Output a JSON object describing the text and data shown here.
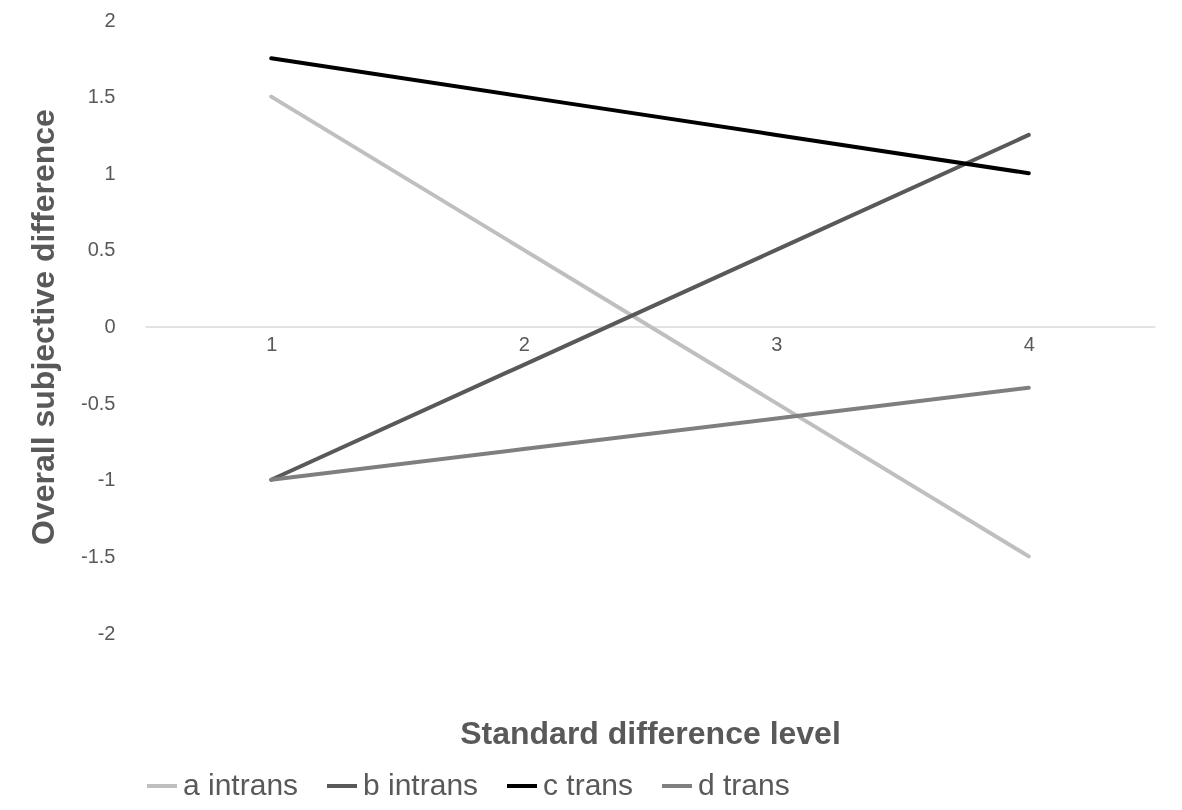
{
  "chart_data": {
    "type": "line",
    "xlabel": "Standard difference level",
    "ylabel": "Overall subjective difference",
    "categories": [
      "1",
      "2",
      "3",
      "4"
    ],
    "series": [
      {
        "name": "a intrans",
        "color": "#bfbfbf",
        "values": [
          1.5,
          0.5,
          -0.5,
          -1.5
        ]
      },
      {
        "name": "b intrans",
        "color": "#595959",
        "values": [
          -1,
          -0.25,
          0.5,
          1.25
        ]
      },
      {
        "name": "c trans",
        "color": "#000000",
        "values": [
          1.75,
          1.5,
          1.25,
          1
        ]
      },
      {
        "name": "d trans",
        "color": "#7f7f7f",
        "values": [
          -1,
          -0.8,
          -0.6,
          -0.4
        ]
      }
    ],
    "ylim": [
      -2,
      2
    ],
    "yticks": [
      -2,
      -1.5,
      -1,
      -0.5,
      0,
      0.5,
      1,
      1.5,
      2
    ],
    "grid": false,
    "legend": "bottom",
    "marker": "none",
    "line_style": "solid"
  }
}
